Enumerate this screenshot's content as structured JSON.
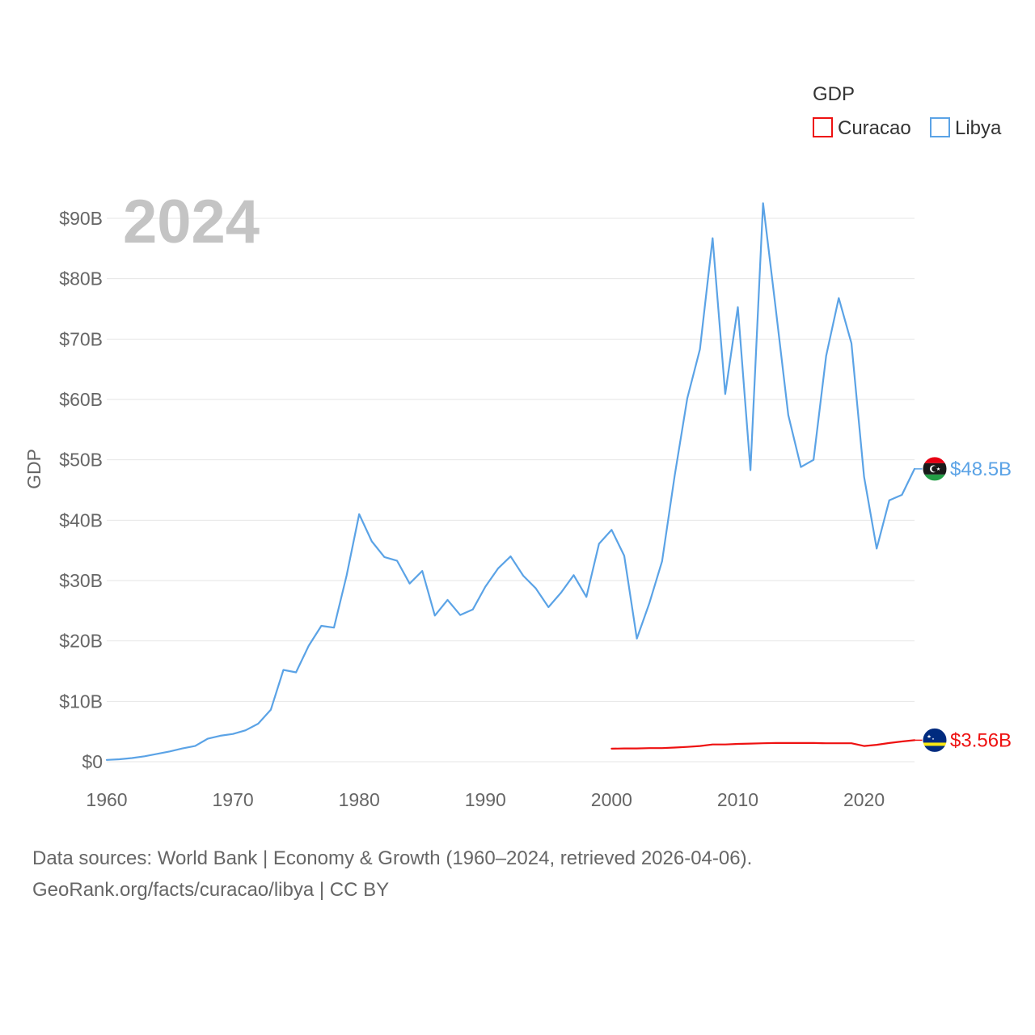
{
  "colors": {
    "Curacao": "#ee1111",
    "Libya": "#5ba3e6",
    "grid": "#e6e6e6",
    "year": "#c4c4c4"
  },
  "chart_data": {
    "type": "line",
    "title": "",
    "year_label": "2024",
    "legend_title": "GDP",
    "ylabel": "GDP",
    "xlabel": "",
    "xlim": [
      1960,
      2024
    ],
    "ylim": [
      0,
      90
    ],
    "x_ticks": [
      "1960",
      "1970",
      "1980",
      "1990",
      "2000",
      "2010",
      "2020"
    ],
    "y_ticks": [
      "$0",
      "$10B",
      "$20B",
      "$30B",
      "$40B",
      "$50B",
      "$60B",
      "$70B",
      "$80B",
      "$90B"
    ],
    "units": "billions USD",
    "series": [
      {
        "name": "Curacao",
        "flag_icon": "curacao-flag-icon",
        "end_label": "$3.56B",
        "points": [
          [
            2000,
            2.15
          ],
          [
            2001,
            2.2
          ],
          [
            2002,
            2.2
          ],
          [
            2003,
            2.25
          ],
          [
            2004,
            2.25
          ],
          [
            2005,
            2.35
          ],
          [
            2006,
            2.45
          ],
          [
            2007,
            2.6
          ],
          [
            2008,
            2.85
          ],
          [
            2009,
            2.85
          ],
          [
            2010,
            2.95
          ],
          [
            2011,
            3.0
          ],
          [
            2012,
            3.05
          ],
          [
            2013,
            3.1
          ],
          [
            2014,
            3.1
          ],
          [
            2015,
            3.1
          ],
          [
            2016,
            3.1
          ],
          [
            2017,
            3.05
          ],
          [
            2018,
            3.05
          ],
          [
            2019,
            3.05
          ],
          [
            2020,
            2.6
          ],
          [
            2021,
            2.8
          ],
          [
            2022,
            3.1
          ],
          [
            2023,
            3.35
          ],
          [
            2024,
            3.56
          ]
        ]
      },
      {
        "name": "Libya",
        "flag_icon": "libya-flag-icon",
        "end_label": "$48.5B",
        "points": [
          [
            1960,
            0.3
          ],
          [
            1961,
            0.4
          ],
          [
            1962,
            0.6
          ],
          [
            1963,
            0.9
          ],
          [
            1964,
            1.3
          ],
          [
            1965,
            1.7
          ],
          [
            1966,
            2.2
          ],
          [
            1967,
            2.6
          ],
          [
            1968,
            3.8
          ],
          [
            1969,
            4.3
          ],
          [
            1970,
            4.6
          ],
          [
            1971,
            5.2
          ],
          [
            1972,
            6.3
          ],
          [
            1973,
            8.6
          ],
          [
            1974,
            15.2
          ],
          [
            1975,
            14.8
          ],
          [
            1976,
            19.2
          ],
          [
            1977,
            22.5
          ],
          [
            1978,
            22.2
          ],
          [
            1979,
            30.8
          ],
          [
            1980,
            41.0
          ],
          [
            1981,
            36.5
          ],
          [
            1982,
            33.9
          ],
          [
            1983,
            33.3
          ],
          [
            1984,
            29.5
          ],
          [
            1985,
            31.6
          ],
          [
            1986,
            24.2
          ],
          [
            1987,
            26.8
          ],
          [
            1988,
            24.3
          ],
          [
            1989,
            25.2
          ],
          [
            1990,
            29.0
          ],
          [
            1991,
            32.0
          ],
          [
            1992,
            34.0
          ],
          [
            1993,
            30.8
          ],
          [
            1994,
            28.7
          ],
          [
            1995,
            25.6
          ],
          [
            1996,
            28.0
          ],
          [
            1997,
            30.9
          ],
          [
            1998,
            27.3
          ],
          [
            1999,
            36.1
          ],
          [
            2000,
            38.4
          ],
          [
            2001,
            34.1
          ],
          [
            2002,
            20.4
          ],
          [
            2003,
            26.3
          ],
          [
            2004,
            33.2
          ],
          [
            2005,
            47.4
          ],
          [
            2006,
            60.2
          ],
          [
            2007,
            68.3
          ],
          [
            2008,
            86.7
          ],
          [
            2009,
            60.9
          ],
          [
            2010,
            75.3
          ],
          [
            2011,
            48.3
          ],
          [
            2012,
            92.5
          ],
          [
            2013,
            75.1
          ],
          [
            2014,
            57.4
          ],
          [
            2015,
            48.8
          ],
          [
            2016,
            50.0
          ],
          [
            2017,
            67.2
          ],
          [
            2018,
            76.8
          ],
          [
            2019,
            69.3
          ],
          [
            2020,
            47.2
          ],
          [
            2021,
            35.3
          ],
          [
            2022,
            43.3
          ],
          [
            2023,
            44.2
          ],
          [
            2024,
            48.5
          ]
        ]
      }
    ]
  },
  "footer": {
    "sources": "Data sources: World Bank | Economy & Growth (1960–2024, retrieved 2026-04-06).",
    "attribution": "GeoRank.org/facts/curacao/libya | CC BY"
  }
}
